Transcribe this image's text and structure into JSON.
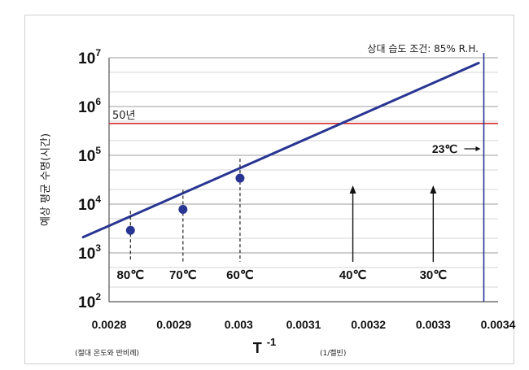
{
  "chart_data": {
    "type": "line",
    "title": "",
    "note": "상대 습도 조건: 85% R.H.",
    "ylabel": "예상 평균 수명(시간)",
    "xlabel": "T",
    "xlabel_sup": "-1",
    "x_note_left": "(절대 온도와 반비례)",
    "x_note_right": "(1/켈빈)",
    "xlim": [
      0.0028,
      0.0034
    ],
    "ylim": [
      100,
      10000000
    ],
    "y_scale": "log",
    "x_ticks": [
      "0.0028",
      "0.0029",
      "0.003",
      "0.0031",
      "0.0032",
      "0.0033",
      "0.0034"
    ],
    "y_ticks": [
      {
        "base": "10",
        "exp": "2",
        "value": 100
      },
      {
        "base": "10",
        "exp": "3",
        "value": 1000
      },
      {
        "base": "10",
        "exp": "4",
        "value": 10000
      },
      {
        "base": "10",
        "exp": "5",
        "value": 100000
      },
      {
        "base": "10",
        "exp": "6",
        "value": 1000000
      },
      {
        "base": "10",
        "exp": "7",
        "value": 10000000
      }
    ],
    "grid": true,
    "line": {
      "color": "#283593",
      "x": [
        0.00276,
        0.00337
      ],
      "y": [
        2100,
        7800000
      ]
    },
    "points": [
      {
        "x": 0.002833,
        "y": 2900,
        "label": "80℃"
      },
      {
        "x": 0.002914,
        "y": 7800,
        "label": "70℃"
      },
      {
        "x": 0.003002,
        "y": 34000,
        "label": "60℃"
      }
    ],
    "arrow_labels": [
      {
        "x": 0.003176,
        "label": "40℃"
      },
      {
        "x": 0.0033,
        "label": "30℃"
      }
    ],
    "reference_line": {
      "y": 450000,
      "label": "50년",
      "color": "#d32f2f"
    },
    "vertical_line": {
      "x": 0.003378,
      "label": "23℃",
      "color": "#283593"
    }
  }
}
